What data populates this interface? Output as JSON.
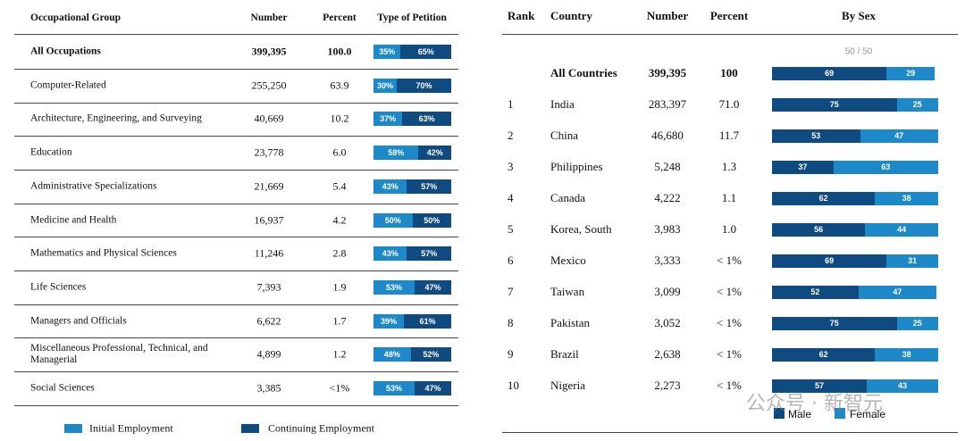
{
  "left_table": {
    "headers": [
      "Occupational Group",
      "Number",
      "Percent",
      "Type of Petition"
    ],
    "rows": [
      {
        "group": "All Occupations",
        "number": "399,395",
        "percent": "100.0",
        "initial": {
          "value": 35,
          "label": "35%"
        },
        "continuing": {
          "value": 65,
          "label": "65%"
        }
      },
      {
        "group": "Computer-Related",
        "number": "255,250",
        "percent": "63.9",
        "initial": {
          "value": 30,
          "label": "30%"
        },
        "continuing": {
          "value": 70,
          "label": "70%"
        }
      },
      {
        "group": "Architecture, Engineering, and Surveying",
        "number": "40,669",
        "percent": "10.2",
        "initial": {
          "value": 37,
          "label": "37%"
        },
        "continuing": {
          "value": 63,
          "label": "63%"
        }
      },
      {
        "group": "Education",
        "number": "23,778",
        "percent": "6.0",
        "initial": {
          "value": 58,
          "label": "58%"
        },
        "continuing": {
          "value": 42,
          "label": "42%"
        }
      },
      {
        "group": "Administrative Specializations",
        "number": "21,669",
        "percent": "5.4",
        "initial": {
          "value": 43,
          "label": "43%"
        },
        "continuing": {
          "value": 57,
          "label": "57%"
        }
      },
      {
        "group": "Medicine and Health",
        "number": "16,937",
        "percent": "4.2",
        "initial": {
          "value": 50,
          "label": "50%"
        },
        "continuing": {
          "value": 50,
          "label": "50%"
        }
      },
      {
        "group": "Mathematics and Physical Sciences",
        "number": "11,246",
        "percent": "2.8",
        "initial": {
          "value": 43,
          "label": "43%"
        },
        "continuing": {
          "value": 57,
          "label": "57%"
        }
      },
      {
        "group": "Life Sciences",
        "number": "7,393",
        "percent": "1.9",
        "initial": {
          "value": 53,
          "label": "53%"
        },
        "continuing": {
          "value": 47,
          "label": "47%"
        }
      },
      {
        "group": "Managers and Officials",
        "number": "6,622",
        "percent": "1.7",
        "initial": {
          "value": 39,
          "label": "39%"
        },
        "continuing": {
          "value": 61,
          "label": "61%"
        }
      },
      {
        "group": "Miscellaneous Professional, Technical, and Managerial",
        "number": "4,899",
        "percent": "1.2",
        "initial": {
          "value": 48,
          "label": "48%"
        },
        "continuing": {
          "value": 52,
          "label": "52%"
        }
      },
      {
        "group": "Social Sciences",
        "number": "3,385",
        "percent": "<1%",
        "initial": {
          "value": 53,
          "label": "53%"
        },
        "continuing": {
          "value": 47,
          "label": "47%"
        }
      }
    ],
    "legend": [
      "Initial Employment",
      "Continuing Employment"
    ]
  },
  "right_table": {
    "headers": [
      "Rank",
      "Country",
      "Number",
      "Percent",
      "By Sex"
    ],
    "scale_note": "50 / 50",
    "rows": [
      {
        "country": "All Countries",
        "number": "399,395",
        "percent": "100",
        "male": 69,
        "female": 29
      },
      {
        "rank": "1",
        "country": "India",
        "number": "283,397",
        "percent": "71.0",
        "male": 75,
        "female": 25
      },
      {
        "rank": "2",
        "country": "China",
        "number": "46,680",
        "percent": "11.7",
        "male": 53,
        "female": 47
      },
      {
        "rank": "3",
        "country": "Philippines",
        "number": "5,248",
        "percent": "1.3",
        "male": 37,
        "female": 63
      },
      {
        "rank": "4",
        "country": "Canada",
        "number": "4,222",
        "percent": "1.1",
        "male": 62,
        "female": 38
      },
      {
        "rank": "5",
        "country": "Korea, South",
        "number": "3,983",
        "percent": "1.0",
        "male": 56,
        "female": 44
      },
      {
        "rank": "6",
        "country": "Mexico",
        "number": "3,333",
        "percent": "< 1%",
        "male": 69,
        "female": 31
      },
      {
        "rank": "7",
        "country": "Taiwan",
        "number": "3,099",
        "percent": "< 1%",
        "male": 52,
        "female": 47
      },
      {
        "rank": "8",
        "country": "Pakistan",
        "number": "3,052",
        "percent": "< 1%",
        "male": 75,
        "female": 25
      },
      {
        "rank": "9",
        "country": "Brazil",
        "number": "2,638",
        "percent": "< 1%",
        "male": 62,
        "female": 38
      },
      {
        "rank": "10",
        "country": "Nigeria",
        "number": "2,273",
        "percent": "< 1%",
        "male": 57,
        "female": 43
      }
    ],
    "legend": [
      "Male",
      "Female"
    ]
  },
  "watermark": "公众号 · 新智元"
}
